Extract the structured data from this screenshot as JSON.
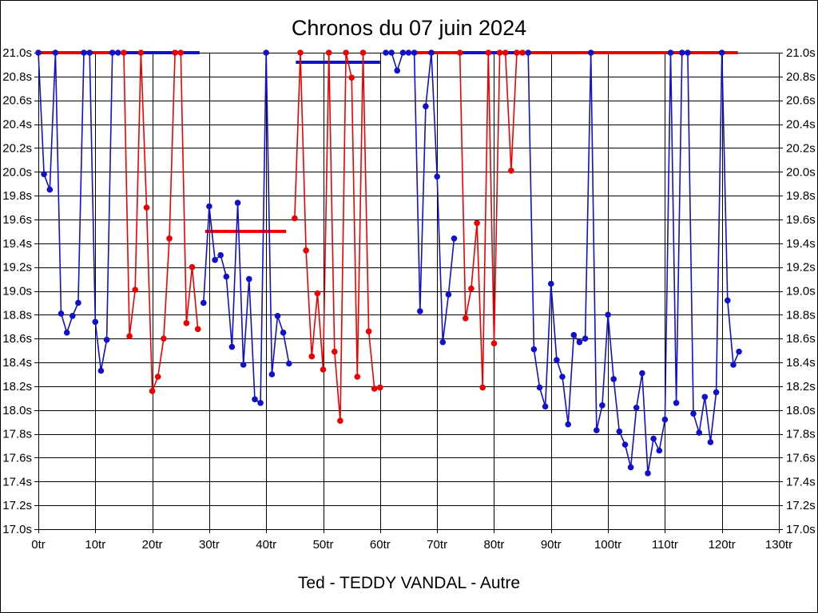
{
  "page": {
    "title": "Chronos du 07 juin 2024",
    "footer_label": "Ted - TEDDY VANDAL - Autre"
  },
  "chart_data": {
    "type": "line",
    "title": "Chronos du 07 juin 2024",
    "subtitle": "Ted - TEDDY VANDAL - Autre",
    "xlabel": "",
    "ylabel": "",
    "x_unit": "tr",
    "y_unit": "s",
    "xlim": [
      0,
      130
    ],
    "ylim": [
      17.0,
      21.0
    ],
    "x_tick_step": 10,
    "y_tick_step": 0.2,
    "x_tick_labels": [
      "0tr",
      "10tr",
      "20tr",
      "30tr",
      "40tr",
      "50tr",
      "60tr",
      "70tr",
      "80tr",
      "90tr",
      "100tr",
      "110tr",
      "120tr",
      "130tr"
    ],
    "y_tick_labels": [
      "21.0s",
      "20.8s",
      "20.6s",
      "20.4s",
      "20.2s",
      "20.0s",
      "19.8s",
      "19.6s",
      "19.4s",
      "19.2s",
      "19.0s",
      "18.8s",
      "18.6s",
      "18.4s",
      "18.2s",
      "18.0s",
      "17.8s",
      "17.6s",
      "17.4s",
      "17.2s",
      "17.0s"
    ],
    "grid": true,
    "legend": "none",
    "clip_ceiling": 21.0,
    "colors": {
      "blue_series": "#1111cc",
      "red_series": "#ee0000",
      "grid": "#000000",
      "background": "#ffffff",
      "text": "#000000"
    },
    "sessions": [
      {
        "name": "session-1",
        "color": "blue",
        "start_lap": 0,
        "times": [
          21.0,
          19.98,
          19.85,
          21.0,
          18.81,
          18.65,
          18.79,
          18.9,
          21.0,
          21.0,
          18.74,
          18.33,
          18.59,
          21.0,
          21.0
        ]
      },
      {
        "name": "session-2",
        "color": "red",
        "start_lap": 15,
        "times": [
          21.0,
          18.62,
          19.01,
          21.0,
          19.7,
          18.16,
          18.28,
          18.6,
          19.44,
          21.0,
          21.0,
          18.73,
          19.2,
          18.68
        ]
      },
      {
        "name": "session-3",
        "color": "blue",
        "start_lap": 29,
        "times": [
          18.9,
          19.71,
          19.26,
          19.3,
          19.12,
          18.53,
          19.74,
          18.38,
          19.1,
          18.09,
          18.06,
          21.0,
          18.3,
          18.79,
          18.65,
          18.39
        ]
      },
      {
        "name": "session-4",
        "color": "red",
        "start_lap": 45,
        "times": [
          19.61,
          21.0,
          19.34,
          18.45,
          18.98,
          18.34,
          21.0,
          18.49,
          17.91,
          21.0,
          20.79,
          18.28,
          21.0,
          18.66,
          18.18,
          18.19
        ]
      },
      {
        "name": "session-5",
        "color": "blue",
        "start_lap": 61,
        "times": [
          21.0,
          21.0,
          20.85,
          21.0,
          21.0,
          21.0,
          18.83,
          20.55,
          21.0,
          19.96,
          18.57,
          18.97,
          19.44
        ]
      },
      {
        "name": "session-6",
        "color": "red",
        "start_lap": 74,
        "times": [
          21.0,
          18.77,
          19.02,
          19.57,
          18.19,
          21.0,
          18.56,
          21.0,
          21.0,
          20.01,
          21.0,
          21.0
        ]
      },
      {
        "name": "session-7",
        "color": "blue",
        "start_lap": 86,
        "times": [
          21.0,
          18.51,
          18.19,
          18.03,
          19.06,
          18.42,
          18.28,
          17.88,
          18.63,
          18.57,
          18.6,
          21.0,
          17.83,
          18.04,
          18.8,
          18.26,
          17.82,
          17.71,
          17.52,
          18.02,
          18.31,
          17.47,
          17.76,
          17.66,
          17.92,
          21.0,
          18.06,
          21.0,
          21.0,
          17.97,
          17.81,
          18.11,
          17.73,
          18.15,
          21.0,
          18.92,
          18.38,
          18.49
        ]
      }
    ],
    "average_lines": [
      {
        "color": "red",
        "value": 21.0,
        "from_lap": 0.0,
        "to_lap": 14.3
      },
      {
        "color": "blue",
        "value": 21.0,
        "from_lap": 15.4,
        "to_lap": 28.3
      },
      {
        "color": "red",
        "value": 19.5,
        "from_lap": 29.3,
        "to_lap": 43.5
      },
      {
        "color": "blue",
        "value": 20.92,
        "from_lap": 45.2,
        "to_lap": 60.0
      },
      {
        "color": "red",
        "value": 21.0,
        "from_lap": 65.8,
        "to_lap": 73.8
      },
      {
        "color": "blue",
        "value": 21.0,
        "from_lap": 74.1,
        "to_lap": 85.6
      },
      {
        "color": "red",
        "value": 21.0,
        "from_lap": 86.1,
        "to_lap": 122.8
      }
    ]
  }
}
